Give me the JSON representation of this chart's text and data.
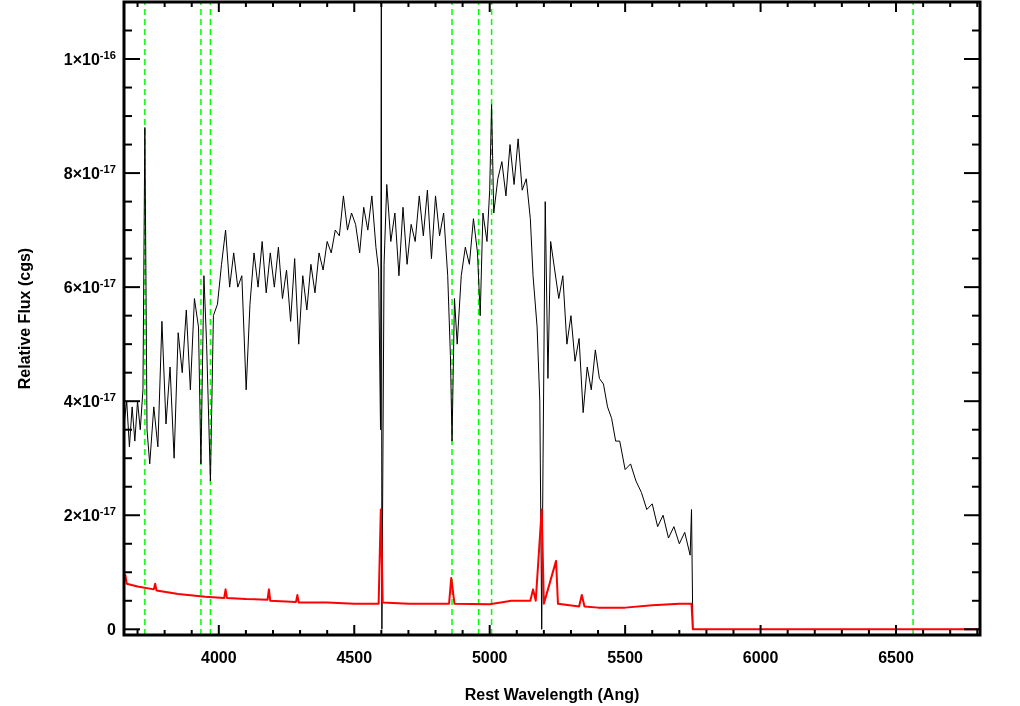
{
  "chart_data": {
    "type": "line",
    "xlabel": "Rest Wavelength (Ang)",
    "ylabel": "Relative Flux (cgs)",
    "xlim": [
      3650,
      6810
    ],
    "ylim": [
      -1e-18,
      1.1e-16
    ],
    "xticks": [
      {
        "value": 3700,
        "label": null
      },
      {
        "value": 3800,
        "label": null
      },
      {
        "value": 3900,
        "label": null
      },
      4000,
      {
        "value": 4100,
        "label": null
      },
      {
        "value": 4200,
        "label": null
      },
      {
        "value": 4300,
        "label": null
      },
      {
        "value": 4400,
        "label": null
      },
      4500,
      {
        "value": 4600,
        "label": null
      },
      {
        "value": 4700,
        "label": null
      },
      {
        "value": 4800,
        "label": null
      },
      {
        "value": 4900,
        "label": null
      },
      5000,
      {
        "value": 5100,
        "label": null
      },
      {
        "value": 5200,
        "label": null
      },
      {
        "value": 5300,
        "label": null
      },
      {
        "value": 5400,
        "label": null
      },
      5500,
      {
        "value": 5600,
        "label": null
      },
      {
        "value": 5700,
        "label": null
      },
      {
        "value": 5800,
        "label": null
      },
      {
        "value": 5900,
        "label": null
      },
      6000,
      {
        "value": 6100,
        "label": null
      },
      {
        "value": 6200,
        "label": null
      },
      {
        "value": 6300,
        "label": null
      },
      {
        "value": 6400,
        "label": null
      },
      6500,
      {
        "value": 6600,
        "label": null
      },
      {
        "value": 6700,
        "label": null
      },
      {
        "value": 6800,
        "label": null
      }
    ],
    "yticks": [
      0,
      {
        "value": 5e-18,
        "label": null
      },
      {
        "value": 2e-17,
        "label": "2×10$^{-17}$"
      },
      {
        "value": 1e-17,
        "label": null
      },
      {
        "value": 1.5e-17,
        "label": null
      },
      {
        "value": 2.5e-17,
        "label": null
      },
      {
        "value": 3e-17,
        "label": null
      },
      {
        "value": 3.5e-17,
        "label": null
      },
      {
        "value": 4e-17,
        "label": "4×10$^{-17}$"
      },
      {
        "value": 4.5e-17,
        "label": null
      },
      {
        "value": 5e-17,
        "label": null
      },
      {
        "value": 5.5e-17,
        "label": null
      },
      {
        "value": 6e-17,
        "label": "6×10$^{-17}$"
      },
      {
        "value": 6.5e-17,
        "label": null
      },
      {
        "value": 7e-17,
        "label": null
      },
      {
        "value": 7.5e-17,
        "label": null
      },
      {
        "value": 8e-17,
        "label": "8×10$^{-17}$"
      },
      {
        "value": 8.5e-17,
        "label": null
      },
      {
        "value": 9e-17,
        "label": null
      },
      {
        "value": 9.5e-17,
        "label": null
      },
      {
        "value": 1e-16,
        "label": "1×10$^{-16}$"
      },
      {
        "value": 1.05e-16,
        "label": null
      }
    ],
    "grid": false,
    "marker": "none",
    "series": [
      {
        "color": "#000000",
        "line_style": "solid",
        "x": [
          3650,
          3660,
          3670,
          3680,
          3690,
          3700,
          3710,
          3720,
          3727,
          3735,
          3745,
          3760,
          3775,
          3790,
          3805,
          3820,
          3835,
          3850,
          3865,
          3880,
          3895,
          3910,
          3925,
          3934,
          3945,
          3955,
          3969,
          3980,
          3995,
          4010,
          4025,
          4040,
          4055,
          4070,
          4085,
          4101,
          4115,
          4130,
          4145,
          4160,
          4175,
          4190,
          4205,
          4220,
          4235,
          4250,
          4265,
          4280,
          4295,
          4310,
          4325,
          4340,
          4355,
          4370,
          4385,
          4400,
          4415,
          4430,
          4445,
          4460,
          4475,
          4490,
          4505,
          4520,
          4535,
          4550,
          4565,
          4580,
          4590,
          4597,
          4600,
          4602,
          4610,
          4620,
          4635,
          4650,
          4665,
          4680,
          4695,
          4710,
          4725,
          4740,
          4755,
          4770,
          4785,
          4800,
          4815,
          4830,
          4845,
          4855,
          4861,
          4870,
          4880,
          4895,
          4910,
          4925,
          4940,
          4955,
          4965,
          4975,
          4990,
          5000,
          5007,
          5015,
          5030,
          5045,
          5060,
          5075,
          5090,
          5105,
          5120,
          5135,
          5150,
          5160,
          5175,
          5185,
          5192,
          5197,
          5205,
          5215,
          5225,
          5240,
          5255,
          5270,
          5285,
          5300,
          5315,
          5330,
          5345,
          5360,
          5375,
          5390,
          5405,
          5420,
          5435,
          5450,
          5465,
          5480,
          5500,
          5520,
          5540,
          5560,
          5580,
          5600,
          5620,
          5640,
          5660,
          5680,
          5700,
          5720,
          5740,
          5745,
          5750
        ],
        "values": [
          3.6e-17,
          4e-17,
          3.2e-17,
          3.9e-17,
          3.3e-17,
          4e-17,
          3.5e-17,
          4.2e-17,
          8.8e-17,
          3.5e-17,
          2.9e-17,
          3.9e-17,
          3.2e-17,
          5.4e-17,
          3.6e-17,
          4.6e-17,
          3e-17,
          5.2e-17,
          4.5e-17,
          5.6e-17,
          4.2e-17,
          5.8e-17,
          5.3e-17,
          2.9e-17,
          6.2e-17,
          5e-17,
          2.6e-17,
          5.5e-17,
          5.7e-17,
          6.4e-17,
          7e-17,
          6e-17,
          6.6e-17,
          6e-17,
          6.2e-17,
          4.2e-17,
          5.7e-17,
          6.6e-17,
          6e-17,
          6.8e-17,
          5.9e-17,
          6.6e-17,
          6e-17,
          6.7e-17,
          5.8e-17,
          6.3e-17,
          5.4e-17,
          6.5e-17,
          5e-17,
          6.2e-17,
          5.6e-17,
          6.4e-17,
          5.9e-17,
          6.6e-17,
          6.3e-17,
          6.8e-17,
          6.6e-17,
          7e-17,
          6.9e-17,
          7.6e-17,
          7e-17,
          7.3e-17,
          7.1e-17,
          6.6e-17,
          7.4e-17,
          7e-17,
          7.6e-17,
          6.7e-17,
          6.3e-17,
          3.5e-17,
          1.1e-16,
          0,
          6.4e-17,
          7.8e-17,
          6.8e-17,
          7.3e-17,
          6.2e-17,
          7.4e-17,
          6.4e-17,
          7.1e-17,
          6.8e-17,
          7.6e-17,
          6.9e-17,
          7.7e-17,
          6.5e-17,
          7.6e-17,
          6.9e-17,
          7.3e-17,
          6.2e-17,
          4.8e-17,
          3.3e-17,
          5.8e-17,
          5e-17,
          6.2e-17,
          6.7e-17,
          6.4e-17,
          7.2e-17,
          6.6e-17,
          5.5e-17,
          7.3e-17,
          6.8e-17,
          7.7e-17,
          9.2e-17,
          7.3e-17,
          7.9e-17,
          8.2e-17,
          7.6e-17,
          8.5e-17,
          7.8e-17,
          8.6e-17,
          7.7e-17,
          7.9e-17,
          7.2e-17,
          6.2e-17,
          5.3e-17,
          4e-17,
          0,
          3e-17,
          7.5e-17,
          4.4e-17,
          6.8e-17,
          6.3e-17,
          5.8e-17,
          6.2e-17,
          5e-17,
          5.5e-17,
          4.7e-17,
          5.1e-17,
          3.8e-17,
          4.6e-17,
          4.2e-17,
          4.9e-17,
          4.4e-17,
          4.3e-17,
          3.9e-17,
          3.7e-17,
          3.3e-17,
          3.3e-17,
          2.8e-17,
          2.9e-17,
          2.6e-17,
          2.4e-17,
          2.1e-17,
          2.2e-17,
          1.8e-17,
          2e-17,
          1.6e-17,
          1.8e-17,
          1.5e-17,
          1.7e-17,
          1.3e-17,
          2.1e-17,
          0
        ]
      },
      {
        "color": "#ff0000",
        "line_style": "solid",
        "x": [
          3650,
          3655,
          3660,
          3700,
          3760,
          3765,
          3770,
          3850,
          3950,
          4020,
          4025,
          4030,
          4100,
          4180,
          4185,
          4190,
          4285,
          4290,
          4295,
          4400,
          4500,
          4590,
          4598,
          4605,
          4700,
          4850,
          4858,
          4870,
          5000,
          5080,
          5150,
          5160,
          5170,
          5192,
          5200,
          5245,
          5252,
          5330,
          5340,
          5350,
          5400,
          5500,
          5600,
          5700,
          5745,
          5750,
          6810
        ],
        "values": [
          8.5e-18,
          9.5e-18,
          8e-18,
          7.5e-18,
          7e-18,
          8e-18,
          6.8e-18,
          6.2e-18,
          5.7e-18,
          5.5e-18,
          7e-18,
          5.5e-18,
          5.3e-18,
          5.2e-18,
          7e-18,
          5e-18,
          4.8e-18,
          6e-18,
          4.7e-18,
          4.7e-18,
          4.5e-18,
          4.5e-18,
          2.1e-17,
          4.7e-18,
          4.5e-18,
          4.5e-18,
          9e-18,
          4.5e-18,
          4.4e-18,
          5e-18,
          5e-18,
          7e-18,
          5e-18,
          2.1e-17,
          4.5e-18,
          1.2e-17,
          4.5e-18,
          4e-18,
          6e-18,
          4e-18,
          3.8e-18,
          3.8e-18,
          4.2e-18,
          4.5e-18,
          4.5e-18,
          0,
          0
        ]
      }
    ],
    "ref_lines": [
      {
        "axis": "x",
        "value": 3727,
        "color": "#00ff00",
        "line_style": "dashed"
      },
      {
        "axis": "x",
        "value": 3934,
        "color": "#00ff00",
        "line_style": "dashed"
      },
      {
        "axis": "x",
        "value": 3969,
        "color": "#00ff00",
        "line_style": "dashed"
      },
      {
        "axis": "x",
        "value": 4861,
        "color": "#00ff00",
        "line_style": "dashed"
      },
      {
        "axis": "x",
        "value": 4959,
        "color": "#00ff00",
        "line_style": "dashed"
      },
      {
        "axis": "x",
        "value": 5007,
        "color": "#00ff00",
        "line_style": "dashed"
      },
      {
        "axis": "x",
        "value": 6563,
        "color": "#00ff00",
        "line_style": "dashed"
      }
    ]
  }
}
